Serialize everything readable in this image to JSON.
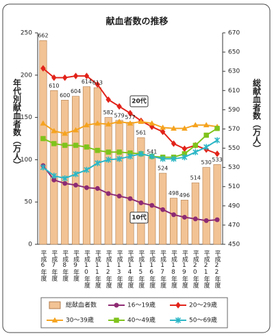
{
  "chart_data": {
    "type": "combo",
    "title": "献血者数の推移",
    "y_label": "年代別献血者数（万人）",
    "y2_label": "総献血者数（万人）",
    "categories": [
      "平成6年度",
      "平成7年度",
      "平成8年度",
      "平成9年度",
      "平成10年度",
      "平成11年度",
      "平成12年度",
      "平成13年度",
      "平成14年度",
      "平成15年度",
      "平成16年度",
      "平成17年度",
      "平成18年度",
      "平成19年度",
      "平成20年度",
      "平成21年度",
      "平成22年度"
    ],
    "ylim": [
      0,
      250
    ],
    "yticks": [
      0,
      50,
      100,
      150,
      200,
      250
    ],
    "y2lim": [
      450,
      670
    ],
    "y2ticks": [
      450,
      470,
      490,
      510,
      530,
      550,
      570,
      590,
      610,
      630,
      650,
      670
    ],
    "annotations": [
      "20代",
      "10代"
    ],
    "series": [
      {
        "name": "総献血者数",
        "type": "bar",
        "axis": "y2",
        "color": "#f2c394",
        "values": [
          662,
          610,
          600,
          604,
          614,
          613,
          582,
          579,
          577,
          561,
          541,
          524,
          498,
          496,
          514,
          530,
          533
        ]
      },
      {
        "name": "16～19歳",
        "type": "line",
        "marker": "circle",
        "color": "#8e2b73",
        "values": [
          93,
          76,
          72,
          70,
          67,
          66,
          60,
          57,
          54,
          49,
          46,
          41,
          35,
          32,
          30,
          28,
          29
        ]
      },
      {
        "name": "20～29歳",
        "type": "line",
        "marker": "diamond",
        "color": "#e2231a",
        "values": [
          208,
          197,
          197,
          199,
          199,
          189,
          171,
          163,
          155,
          146,
          139,
          133,
          119,
          113,
          117,
          112,
          107
        ]
      },
      {
        "name": "30～39歳",
        "type": "line",
        "marker": "triangle",
        "color": "#f5a31f",
        "values": [
          143,
          134,
          131,
          135,
          141,
          143,
          142,
          145,
          143,
          145,
          143,
          138,
          137,
          137,
          141,
          141,
          139
        ]
      },
      {
        "name": "40～49歳",
        "type": "line",
        "marker": "square",
        "color": "#7fc31c",
        "values": [
          125,
          119,
          117,
          117,
          115,
          111,
          109,
          109,
          108,
          107,
          104,
          103,
          103,
          107,
          117,
          129,
          137
        ]
      },
      {
        "name": "50～69歳",
        "type": "line",
        "marker": "cross",
        "color": "#2bb6c6",
        "values": [
          91,
          81,
          78,
          83,
          88,
          96,
          100,
          101,
          104,
          107,
          104,
          101,
          101,
          103,
          109,
          115,
          123
        ]
      }
    ]
  }
}
